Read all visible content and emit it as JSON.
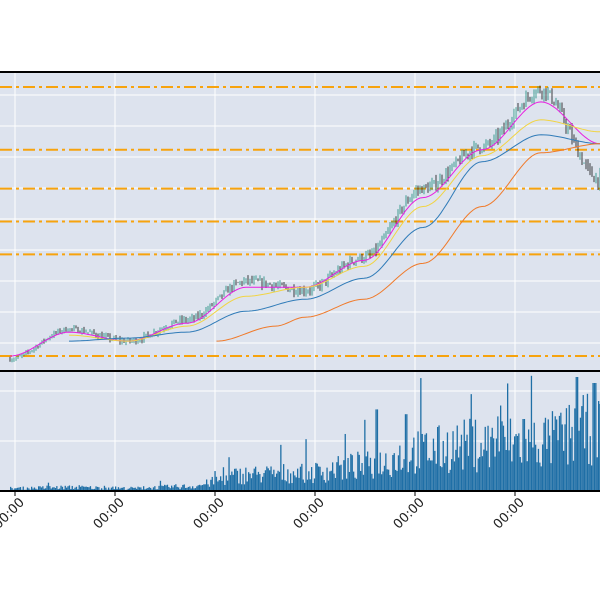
{
  "colors": {
    "plot_background": "#dde3ee",
    "grid": "#ffffff",
    "frame": "#000000",
    "level_lines": "#f7a30d",
    "candle_up": "#1a8a7c",
    "candle_down": "#111111",
    "ma_fast": "#e81ee0",
    "ma_medium": "#f1d443",
    "ma_slow": "#2f7bb8",
    "ma_longest": "#f07a2a",
    "volume": "#1f6fa6"
  },
  "chart_data": [
    {
      "type": "candlestick",
      "title": "",
      "xlabel": "",
      "ylabel": "",
      "grid": true,
      "ylim": [
        0,
        100
      ],
      "horizontal_levels": [
        95,
        74,
        61,
        50,
        39,
        5
      ],
      "series": [
        {
          "role": "price-close",
          "x": [
            0,
            10,
            20,
            30,
            40,
            50,
            60,
            70,
            80,
            90,
            100
          ],
          "values": [
            4,
            14,
            10,
            17,
            30,
            27,
            38,
            61,
            75,
            94,
            64
          ]
        },
        {
          "role": "moving-average-fast",
          "x": [
            0,
            10,
            20,
            30,
            40,
            50,
            60,
            70,
            80,
            90,
            100
          ],
          "values": [
            5,
            13,
            10,
            16,
            28,
            28,
            37,
            58,
            74,
            90,
            76
          ]
        },
        {
          "role": "moving-average-medium",
          "x": [
            0,
            10,
            20,
            30,
            40,
            50,
            60,
            70,
            80,
            90,
            100
          ],
          "values": [
            null,
            12,
            10,
            15,
            25,
            28,
            35,
            55,
            72,
            84,
            80
          ]
        },
        {
          "role": "moving-average-slow",
          "x": [
            0,
            10,
            20,
            30,
            40,
            50,
            60,
            70,
            80,
            90,
            100
          ],
          "values": [
            null,
            10,
            11,
            13,
            20,
            24,
            31,
            48,
            70,
            79,
            76
          ]
        },
        {
          "role": "moving-average-longest",
          "x": [
            35,
            45,
            50,
            60,
            70,
            80,
            90,
            100
          ],
          "values": [
            10,
            15,
            18,
            24,
            36,
            55,
            73,
            76
          ]
        }
      ]
    },
    {
      "type": "bar",
      "title": "",
      "xlabel": "",
      "ylabel": "",
      "grid": true,
      "ylim": [
        0,
        100
      ],
      "x": [
        0,
        10,
        20,
        30,
        40,
        50,
        60,
        70,
        80,
        90,
        100
      ],
      "values": [
        3,
        4,
        3,
        5,
        18,
        20,
        28,
        45,
        52,
        55,
        70
      ],
      "peaks": [
        {
          "x": 62,
          "value": 68
        },
        {
          "x": 67,
          "value": 64
        },
        {
          "x": 87,
          "value": 60
        },
        {
          "x": 96,
          "value": 95
        },
        {
          "x": 99,
          "value": 90
        }
      ]
    }
  ],
  "x_axis": {
    "tick_labels": [
      "00:00",
      "00:00",
      "00:00",
      "00:00",
      "00:00",
      "00:00"
    ]
  }
}
